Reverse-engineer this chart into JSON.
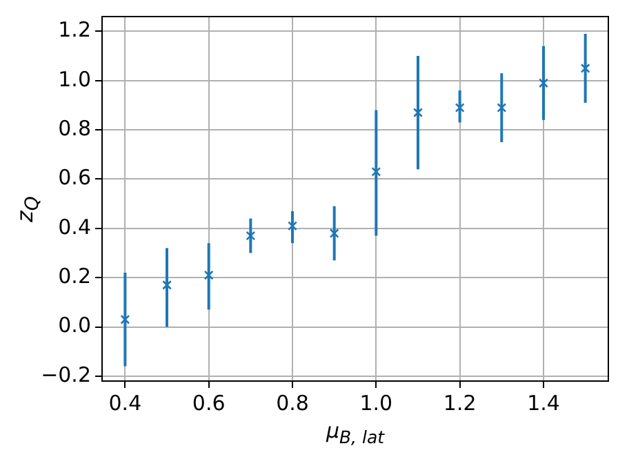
{
  "chart_data": {
    "type": "scatter",
    "xlabel": "μ$_{B, lat}$",
    "ylabel": "z$_{Q}$",
    "x": [
      0.4,
      0.5,
      0.6,
      0.7,
      0.8,
      0.9,
      1.0,
      1.1,
      1.2,
      1.3,
      1.4,
      1.5
    ],
    "series": [
      {
        "color": "#1f77b4",
        "values": [
          0.03,
          0.17,
          0.21,
          0.37,
          0.41,
          0.38,
          0.63,
          0.87,
          0.89,
          0.89,
          0.99,
          1.05
        ],
        "errors": [
          [
            -0.16,
            0.22
          ],
          [
            0.0,
            0.32
          ],
          [
            0.07,
            0.34
          ],
          [
            0.3,
            0.44
          ],
          [
            0.34,
            0.47
          ],
          [
            0.27,
            0.49
          ],
          [
            0.37,
            0.88
          ],
          [
            0.64,
            1.1
          ],
          [
            0.83,
            0.96
          ],
          [
            0.75,
            1.03
          ],
          [
            0.84,
            1.14
          ],
          [
            0.91,
            1.19
          ]
        ]
      }
    ],
    "xlim": [
      0.345,
      1.555
    ],
    "xticks": [
      0.4,
      0.6,
      0.8,
      {
        "value": 1,
        "label": "1.0"
      },
      1.2,
      1.4
    ],
    "ylim": [
      -0.22,
      1.26
    ],
    "yticks": [
      -0.2,
      {
        "value": 0,
        "label": "0.0"
      },
      0.2,
      0.4,
      0.6,
      0.8,
      {
        "value": 1,
        "label": "1.0"
      },
      1.2
    ],
    "grid": true,
    "legend": false,
    "marker": "cross"
  }
}
